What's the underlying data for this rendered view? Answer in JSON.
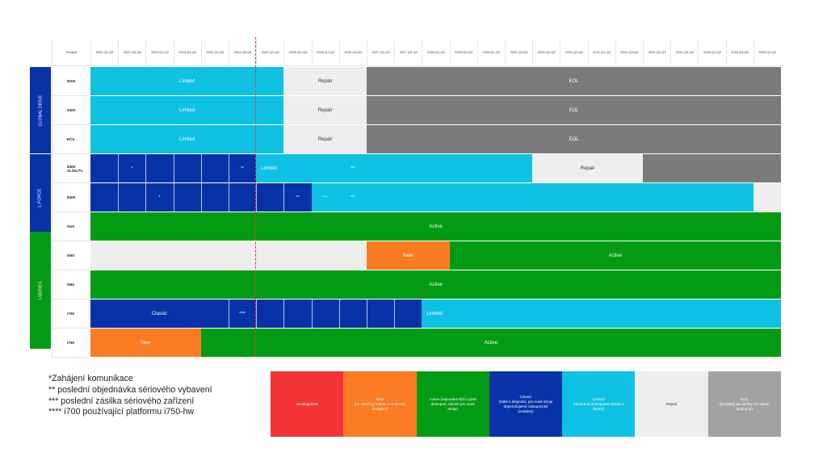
{
  "header": {
    "product_label": "Produkt",
    "periods": [
      "2022 Q1-Q2",
      "2022 Q3-Q4",
      "2023 Q1-Q2",
      "2023 Q3-Q4",
      "2024 Q1-Q2",
      "2024 Q3-Q4",
      "2025 Q1-Q2",
      "2025 Q3-Q4",
      "2026 Q1-Q2",
      "2026 Q3-Q4",
      "2027 Q1-Q2",
      "2027 Q3-Q4",
      "2028 Q1-Q2",
      "2028 Q3-Q4",
      "2029 Q1-Q2",
      "2029 Q3-Q4",
      "2030 Q1-Q2",
      "2030 Q3-Q4",
      "2031 Q1-Q2",
      "2031 Q3-Q4",
      "2032 Q1-Q2",
      "2032 Q3-Q4",
      "2033 Q1-Q2",
      "2033 Q3-Q4",
      "2034 Q1-Q2"
    ]
  },
  "colors": {
    "Development": "#f23434",
    "New": "#fa7b22",
    "Active": "#049b14",
    "Classic": "#0833a8",
    "Limited": "#0fc1e2",
    "Repair": "#eeeeee",
    "EOL": "#7b7b7b",
    "EOL_legend": "#a2a2a2"
  },
  "groups": [
    {
      "label": "GLOBAL DRIVE",
      "rows": [
        0,
        2
      ]
    },
    {
      "label": "L-FORCE",
      "rows": [
        3,
        4
      ]
    },
    {
      "label": "I-SERIES",
      "rows": [
        6,
        9
      ]
    }
  ],
  "rows": [
    {
      "product": "8200",
      "segments": [
        {
          "status": "Limited",
          "start": 0,
          "end": 7,
          "label": "Limited"
        },
        {
          "status": "Repair",
          "start": 7,
          "end": 10,
          "label": "Repair"
        },
        {
          "status": "EOL",
          "start": 10,
          "end": 25,
          "label": "EOL"
        }
      ]
    },
    {
      "product": "9300",
      "segments": [
        {
          "status": "Limited",
          "start": 0,
          "end": 7,
          "label": "Limited"
        },
        {
          "status": "Repair",
          "start": 7,
          "end": 10,
          "label": "Repair"
        },
        {
          "status": "EOL",
          "start": 10,
          "end": 25,
          "label": "EOL"
        }
      ]
    },
    {
      "product": "ECS",
      "segments": [
        {
          "status": "Limited",
          "start": 0,
          "end": 7,
          "label": "Limited"
        },
        {
          "status": "Repair",
          "start": 7,
          "end": 10,
          "label": "Repair"
        },
        {
          "status": "EOL",
          "start": 10,
          "end": 25,
          "label": "EOL"
        }
      ]
    },
    {
      "product": "8400 SL/HL/TL",
      "segments": [
        {
          "status": "Classic",
          "start": 0,
          "end": 6,
          "label": "",
          "cells": true
        },
        {
          "status": "Limited",
          "start": 6,
          "end": 16,
          "label": "Limited",
          "align": "left"
        },
        {
          "status": "Repair",
          "start": 16,
          "end": 20,
          "label": "Repair"
        },
        {
          "status": "EOL",
          "start": 20,
          "end": 25,
          "label": ""
        }
      ],
      "marks": [
        {
          "period": 1,
          "text": "*"
        },
        {
          "period": 5,
          "text": "**"
        },
        {
          "period": 9,
          "text": "***"
        }
      ]
    },
    {
      "product": "8400",
      "segments": [
        {
          "status": "Classic",
          "start": 0,
          "end": 8,
          "label": "",
          "cells": true
        },
        {
          "status": "Limited",
          "start": 8,
          "end": 24,
          "label": ""
        },
        {
          "status": "Repair",
          "start": 24,
          "end": 25,
          "label": ""
        }
      ],
      "marks": [
        {
          "period": 2,
          "text": "*"
        },
        {
          "period": 7,
          "text": "**"
        },
        {
          "period": 8,
          "text": "*******",
          "tiny": true
        },
        {
          "period": 9,
          "text": "***"
        }
      ]
    },
    {
      "product": "i5x0",
      "segments": [
        {
          "status": "Active",
          "start": 0,
          "end": 25,
          "label": "Active"
        }
      ]
    },
    {
      "product": "i650",
      "segments": [
        {
          "status": "Repair",
          "start": 0,
          "end": 10,
          "label": ""
        },
        {
          "status": "New",
          "start": 10,
          "end": 13,
          "label": "New"
        },
        {
          "status": "Active",
          "start": 13,
          "end": 25,
          "label": "Active"
        }
      ]
    },
    {
      "product": "i950",
      "segments": [
        {
          "status": "Active",
          "start": 0,
          "end": 25,
          "label": "Active"
        }
      ]
    },
    {
      "product": "i700",
      "segments": [
        {
          "status": "Classic",
          "start": 0,
          "end": 12,
          "label": "Classic",
          "label_end": 5,
          "cells_from": 5
        },
        {
          "status": "Limited",
          "start": 12,
          "end": 25,
          "label": "Limited",
          "align": "left"
        }
      ],
      "marks": [
        {
          "period": 5,
          "text": "****"
        }
      ]
    },
    {
      "product": "i750",
      "segments": [
        {
          "status": "New",
          "start": 0,
          "end": 4,
          "label": "New"
        },
        {
          "status": "Active",
          "start": 4,
          "end": 25,
          "label": "Active"
        }
      ]
    }
  ],
  "notes": [
    "*Zahájení komunikace",
    "** poslední objednávka sériového vybavení",
    "*** poslední zásilka sériového zařízení",
    "**** i700 používající platformu i750-hw"
  ],
  "legend": [
    {
      "key": "Development",
      "lines": [
        "Development"
      ]
    },
    {
      "key": "New",
      "lines": [
        "New",
        "(ne všechny funkce a možnosti",
        "dostupné)"
      ]
    },
    {
      "key": "Active",
      "lines": [
        "Active (nejmodernější a plně",
        "dostupné, ideální pro nové",
        "stroje)"
      ]
    },
    {
      "key": "Classic",
      "lines": [
        "Classic",
        "(stále k dispozici, pro nové stroje",
        "doporučujeme nástupnické",
        "produkty)"
      ]
    },
    {
      "key": "Limited",
      "lines": [
        "Limited",
        "(omezená dostupnost služeb a",
        "funkcí)"
      ]
    },
    {
      "key": "Repair",
      "lines": [
        "Repair"
      ]
    },
    {
      "key": "EOL_legend",
      "lines": [
        "EOL",
        "(produkty ani služby už nejsou",
        "dostupné)"
      ]
    }
  ]
}
